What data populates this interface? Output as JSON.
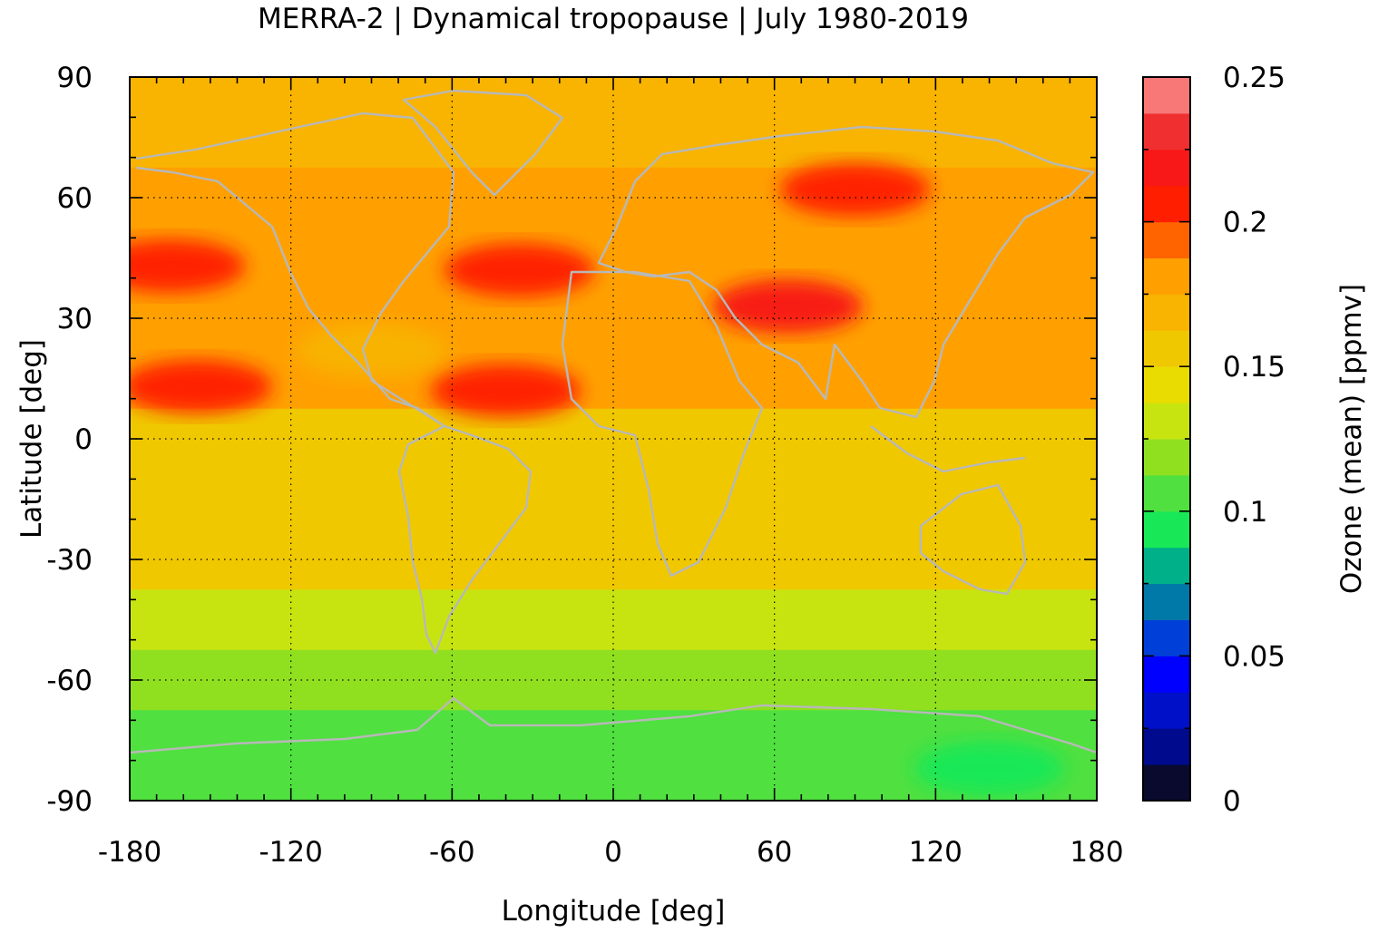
{
  "chart_data": {
    "type": "heatmap",
    "title": "MERRA-2 | Dynamical tropopause | July 1980-2019",
    "xlabel": "Longitude [deg]",
    "ylabel": "Latitude [deg]",
    "colorbar_label": "Ozone (mean) [ppmv]",
    "xlim": [
      -180,
      180
    ],
    "ylim": [
      -90,
      90
    ],
    "xticks": [
      "-180",
      "-120",
      "-60",
      "0",
      "60",
      "120",
      "180"
    ],
    "yticks": [
      "90",
      "60",
      "30",
      "0",
      "-30",
      "-60",
      "-90"
    ],
    "x_tick_values": [
      -180,
      -120,
      -60,
      0,
      60,
      120,
      180
    ],
    "y_tick_values": [
      90,
      60,
      30,
      0,
      -30,
      -60,
      -90
    ],
    "colorbar_range": [
      0,
      0.25
    ],
    "colorbar_ticks": [
      "0",
      "0.05",
      "0.1",
      "0.15",
      "0.2",
      "0.25"
    ],
    "colorbar_tick_values": [
      0,
      0.05,
      0.1,
      0.15,
      0.2,
      0.25
    ],
    "levels": [
      0,
      0.0125,
      0.025,
      0.0375,
      0.05,
      0.0625,
      0.075,
      0.0875,
      0.1,
      0.1125,
      0.125,
      0.1375,
      0.15,
      0.1625,
      0.175,
      0.1875,
      0.2,
      0.2125,
      0.225,
      0.2375,
      0.25
    ],
    "level_colors": [
      "#0a0a2e",
      "#000a8c",
      "#0010c8",
      "#0000ff",
      "#0040d8",
      "#0078a8",
      "#00b088",
      "#18e858",
      "#50e040",
      "#90e020",
      "#c8e410",
      "#e8dc00",
      "#f0c800",
      "#f8b400",
      "#ffa000",
      "#ff6400",
      "#ff1e00",
      "#f81818",
      "#f03030",
      "#f87878",
      "#ffcccc"
    ],
    "grid": true,
    "coastlines": true,
    "coastline_color": "#b8b8b8",
    "latitude_profile": [
      {
        "lat": 90,
        "value": 0.165
      },
      {
        "lat": 75,
        "value": 0.17
      },
      {
        "lat": 60,
        "value": 0.18
      },
      {
        "lat": 45,
        "value": 0.185
      },
      {
        "lat": 30,
        "value": 0.185
      },
      {
        "lat": 15,
        "value": 0.18
      },
      {
        "lat": 0,
        "value": 0.155
      },
      {
        "lat": -15,
        "value": 0.155
      },
      {
        "lat": -30,
        "value": 0.155
      },
      {
        "lat": -45,
        "value": 0.13
      },
      {
        "lat": -60,
        "value": 0.12
      },
      {
        "lat": -75,
        "value": 0.105
      },
      {
        "lat": -90,
        "value": 0.105
      }
    ],
    "features": [
      {
        "lon": 65,
        "lat": 33,
        "value": 0.22
      },
      {
        "lon": -35,
        "lat": 42,
        "value": 0.21
      },
      {
        "lon": 90,
        "lat": 62,
        "value": 0.2
      },
      {
        "lon": -165,
        "lat": 43,
        "value": 0.2
      },
      {
        "lon": -155,
        "lat": 13,
        "value": 0.2
      },
      {
        "lon": -40,
        "lat": 12,
        "value": 0.2
      },
      {
        "lon": -90,
        "lat": 22,
        "value": 0.165
      },
      {
        "lon": 140,
        "lat": -82,
        "value": 0.09
      }
    ]
  }
}
